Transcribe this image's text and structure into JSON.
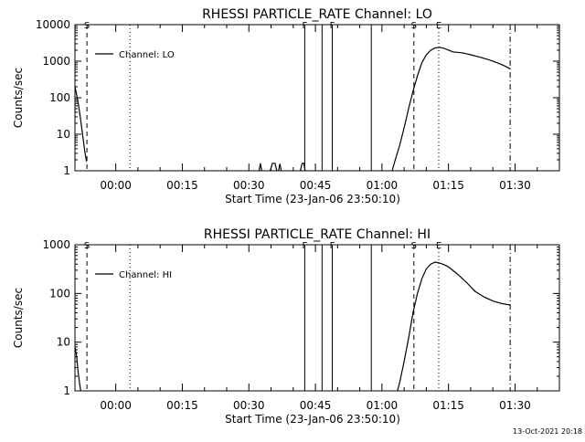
{
  "footer_timestamp": "13-Oct-2021 20:18",
  "chart_data": [
    {
      "type": "line",
      "title": "RHESSI PARTICLE_RATE Channel: LO",
      "xlabel": "Start Time (23-Jan-06 23:50:10)",
      "ylabel": "Counts/sec",
      "yscale": "log",
      "xlim_minutes": [
        -9.2,
        100
      ],
      "ylim": [
        1,
        10000
      ],
      "xtick_labels": [
        "00:00",
        "00:15",
        "00:30",
        "00:45",
        "01:00",
        "01:15",
        "01:30"
      ],
      "xtick_minutes": [
        0,
        15,
        30,
        45,
        60,
        75,
        90
      ],
      "ytick_labels": [
        "1",
        "10",
        "100",
        "1000",
        "10000"
      ],
      "ytick_values": [
        1,
        10,
        100,
        1000,
        10000
      ],
      "legend": "Channel: LO",
      "legend_position": "top-left",
      "event_markers": [
        {
          "label": "S",
          "style": "dash",
          "minute": -6.5
        },
        {
          "label": "",
          "style": "dot",
          "minute": 3.2
        },
        {
          "label": "F",
          "style": "solid",
          "minute": 42.6
        },
        {
          "label": "",
          "style": "solid",
          "minute": 46.5
        },
        {
          "label": "F",
          "style": "solid",
          "minute": 48.8
        },
        {
          "label": "",
          "style": "solid",
          "minute": 57.6
        },
        {
          "label": "S",
          "style": "dash",
          "minute": 67.2
        },
        {
          "label": "E",
          "style": "dot",
          "minute": 72.8
        },
        {
          "label": "",
          "style": "dashdot",
          "minute": 88.9
        }
      ],
      "series": [
        {
          "name": "Channel: LO",
          "segments": [
            {
              "minutes": [
                -9.2,
                -8.6,
                -8.0,
                -7.5,
                -7.0,
                -6.6
              ],
              "values": [
                200,
                90,
                30,
                10,
                3.5,
                1.8
              ]
            },
            {
              "minutes": [
                32.3,
                32.6,
                32.9
              ],
              "values": [
                1,
                1.6,
                1
              ]
            },
            {
              "minutes": [
                34.8,
                35.3,
                35.9,
                36.3
              ],
              "values": [
                1,
                1.6,
                1.6,
                1
              ]
            },
            {
              "minutes": [
                36.7,
                37.0,
                37.3
              ],
              "values": [
                1,
                1.55,
                1
              ]
            },
            {
              "minutes": [
                41.6,
                42.0,
                42.4,
                42.7
              ],
              "values": [
                1,
                1.6,
                1.6,
                1
              ]
            },
            {
              "minutes": [
                62.3,
                63.0,
                64.0,
                65.0,
                66.0,
                67.0,
                68.0,
                69.0,
                70.0,
                71.0,
                72.0,
                73.0,
                74.0,
                76.0,
                78.0,
                80.0,
                82.0,
                84.0,
                86.0,
                87.5,
                88.9
              ],
              "values": [
                1,
                2,
                5,
                15,
                50,
                150,
                400,
                900,
                1500,
                2000,
                2300,
                2400,
                2250,
                1800,
                1700,
                1500,
                1300,
                1100,
                900,
                760,
                620
              ]
            }
          ]
        }
      ]
    },
    {
      "type": "line",
      "title": "RHESSI PARTICLE_RATE Channel: HI",
      "xlabel": "Start Time (23-Jan-06 23:50:10)",
      "ylabel": "Counts/sec",
      "yscale": "log",
      "xlim_minutes": [
        -9.2,
        100
      ],
      "ylim": [
        1,
        1000
      ],
      "xtick_labels": [
        "00:00",
        "00:15",
        "00:30",
        "00:45",
        "01:00",
        "01:15",
        "01:30"
      ],
      "xtick_minutes": [
        0,
        15,
        30,
        45,
        60,
        75,
        90
      ],
      "ytick_labels": [
        "1",
        "10",
        "100",
        "1000"
      ],
      "ytick_values": [
        1,
        10,
        100,
        1000
      ],
      "legend": "Channel: HI",
      "legend_position": "top-left",
      "event_markers": [
        {
          "label": "S",
          "style": "dash",
          "minute": -6.5
        },
        {
          "label": "",
          "style": "dot",
          "minute": 3.2
        },
        {
          "label": "F",
          "style": "solid",
          "minute": 42.6
        },
        {
          "label": "",
          "style": "solid",
          "minute": 46.5
        },
        {
          "label": "F",
          "style": "solid",
          "minute": 48.8
        },
        {
          "label": "",
          "style": "solid",
          "minute": 57.6
        },
        {
          "label": "S",
          "style": "dash",
          "minute": 67.2
        },
        {
          "label": "E",
          "style": "dot",
          "minute": 72.8
        },
        {
          "label": "",
          "style": "dashdot",
          "minute": 88.9
        }
      ],
      "series": [
        {
          "name": "Channel: HI",
          "segments": [
            {
              "minutes": [
                -9.2,
                -8.8,
                -8.5,
                -8.2,
                -7.9
              ],
              "values": [
                8,
                5,
                2.5,
                1.5,
                1
              ]
            },
            {
              "minutes": [
                63.5,
                64.0,
                65.0,
                66.0,
                67.0,
                68.0,
                69.0,
                70.0,
                71.0,
                72.0,
                73.0,
                74.0,
                75.0,
                77.0,
                79.0,
                81.0,
                83.0,
                85.0,
                87.0,
                88.9
              ],
              "values": [
                1,
                1.5,
                4,
                12,
                40,
                100,
                200,
                320,
                400,
                440,
                420,
                390,
                350,
                250,
                170,
                110,
                85,
                70,
                62,
                58
              ]
            }
          ]
        }
      ]
    }
  ]
}
